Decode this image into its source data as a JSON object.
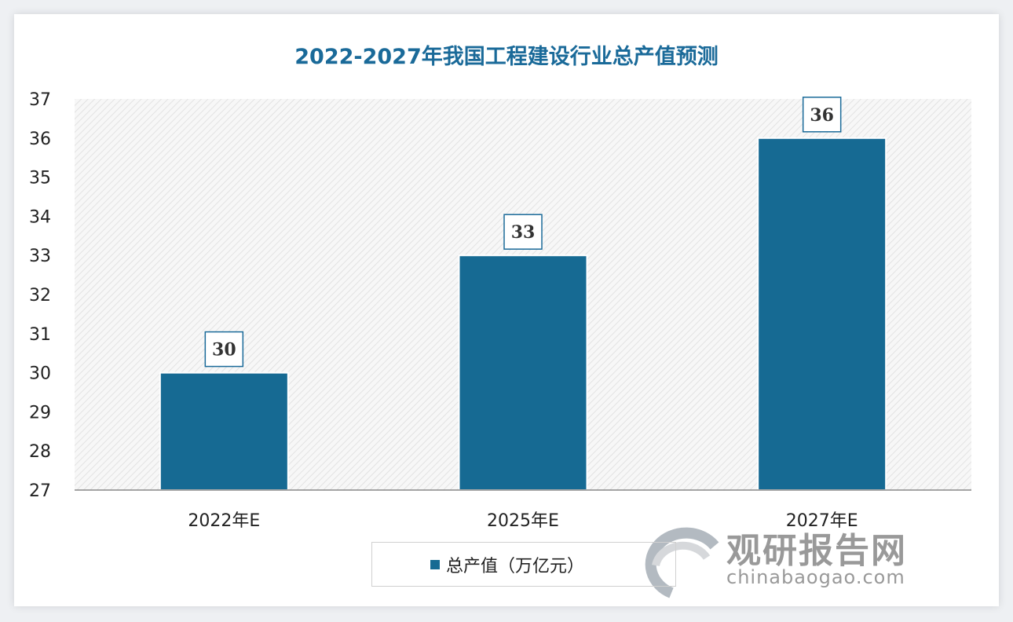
{
  "chart_data": {
    "type": "bar",
    "title": "2022-2027年我国工程建设行业总产值预测",
    "categories": [
      "2022年E",
      "2025年E",
      "2027年E"
    ],
    "series": [
      {
        "name": "总产值（万亿元）",
        "values": [
          30,
          33,
          36
        ]
      }
    ],
    "data_labels": [
      "30",
      "33",
      "36"
    ],
    "yticks": [
      "27",
      "28",
      "29",
      "30",
      "31",
      "32",
      "33",
      "34",
      "35",
      "36",
      "37"
    ],
    "ylim": [
      27,
      37
    ],
    "xlabel": "",
    "ylabel": "",
    "grid": false,
    "legend_position": "bottom",
    "colors": {
      "bar": "#166a93",
      "title": "#1a6a99",
      "plot_background": "hatched light gray"
    }
  },
  "watermark": {
    "logo_text": "观研报告网",
    "url_text": "chinabaogao.com"
  }
}
